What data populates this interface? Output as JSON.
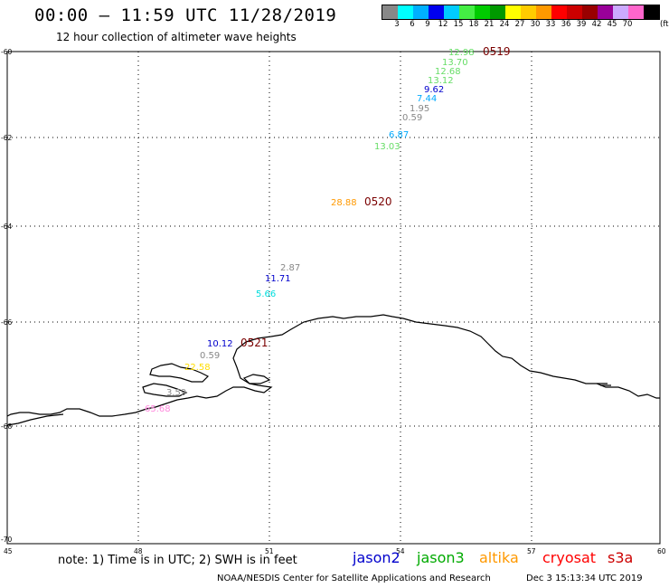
{
  "header": {
    "title": "00:00 – 11:59 UTC 11/28/2019",
    "subtitle": "12 hour collection of altimeter wave heights"
  },
  "legend": {
    "colors": [
      "#888888",
      "#00ffff",
      "#00b0ff",
      "#0000ee",
      "#00ccff",
      "#44ee44",
      "#00cc00",
      "#009900",
      "#ffff00",
      "#ffcc00",
      "#ff9900",
      "#ff0000",
      "#cc0000",
      "#990000",
      "#990099",
      "#ccaaff",
      "#ff66cc",
      "#000000"
    ],
    "labels": [
      "3",
      "6",
      "9",
      "12",
      "15",
      "18",
      "21",
      "24",
      "27",
      "30",
      "33",
      "36",
      "39",
      "42",
      "45",
      "70"
    ],
    "unit": "(ft)"
  },
  "axes": {
    "lat_labels": [
      "-60",
      "-62",
      "-64",
      "-66",
      "-68",
      "-70"
    ],
    "lon_labels": [
      "45",
      "48",
      "51",
      "54",
      "57",
      "60"
    ]
  },
  "passes": [
    {
      "label": "0519",
      "color": "#7a0000"
    },
    {
      "label": "0520",
      "color": "#7a0000"
    },
    {
      "label": "0521",
      "color": "#7a0000"
    }
  ],
  "observations": [
    {
      "value": "12.98",
      "color": "#66dd66"
    },
    {
      "value": "13.70",
      "color": "#66dd66"
    },
    {
      "value": "12.68",
      "color": "#66dd66"
    },
    {
      "value": "13.12",
      "color": "#66dd66"
    },
    {
      "value": "9.62",
      "color": "#0000cc"
    },
    {
      "value": "7.44",
      "color": "#00aaff"
    },
    {
      "value": "1.95",
      "color": "#888888"
    },
    {
      "value": "0.59",
      "color": "#888888"
    },
    {
      "value": "6.87",
      "color": "#00aaff"
    },
    {
      "value": "13.03",
      "color": "#66dd66"
    },
    {
      "value": "28.88",
      "color": "#ff9900"
    },
    {
      "value": "2.87",
      "color": "#888888"
    },
    {
      "value": "11.71",
      "color": "#0000cc"
    },
    {
      "value": "5.66",
      "color": "#00dddd"
    },
    {
      "value": "10.12",
      "color": "#0000cc"
    },
    {
      "value": "0.59",
      "color": "#888888"
    },
    {
      "value": "22.58",
      "color": "#ffdd00"
    },
    {
      "value": "3.59",
      "color": "#888888"
    },
    {
      "value": "65.68",
      "color": "#ff88dd"
    }
  ],
  "footer": {
    "note": "note: 1) Time is in UTC; 2) SWH is in feet",
    "satellites": [
      {
        "name": "jason2",
        "color": "#0000cc"
      },
      {
        "name": "jason3",
        "color": "#00aa00"
      },
      {
        "name": "altika",
        "color": "#ff9900"
      },
      {
        "name": "cryosat",
        "color": "#ff0000"
      },
      {
        "name": "s3a",
        "color": "#cc0000"
      }
    ],
    "credit": "NOAA/NESDIS Center for Satellite Applications and Research",
    "timestamp": "Dec  3 15:13:34 UTC 2019"
  }
}
